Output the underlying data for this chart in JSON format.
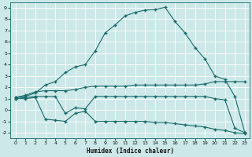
{
  "xlabel": "Humidex (Indice chaleur)",
  "bg_color": "#cce8e8",
  "grid_color": "#b0d4d4",
  "line_color": "#1a6b6b",
  "xlim": [
    -0.5,
    23.5
  ],
  "ylim": [
    -2.5,
    9.5
  ],
  "xticks": [
    0,
    1,
    2,
    3,
    4,
    5,
    6,
    7,
    8,
    9,
    10,
    11,
    12,
    13,
    14,
    15,
    16,
    17,
    18,
    19,
    20,
    21,
    22,
    23
  ],
  "yticks": [
    -2,
    -1,
    0,
    1,
    2,
    3,
    4,
    5,
    6,
    7,
    8,
    9
  ],
  "line_main_x": [
    0,
    1,
    2,
    3,
    4,
    5,
    6,
    7,
    8,
    9,
    10,
    11,
    12,
    13,
    14,
    15,
    16,
    17,
    18,
    19,
    20,
    21,
    22,
    23
  ],
  "line_main_y": [
    1.1,
    1.2,
    1.5,
    2.2,
    2.5,
    3.3,
    3.8,
    4.0,
    5.2,
    6.8,
    7.5,
    8.3,
    8.6,
    8.8,
    8.85,
    9.05,
    7.8,
    6.8,
    5.5,
    4.5,
    3.0,
    2.7,
    1.2,
    -2.0
  ],
  "line_upper_x": [
    0,
    1,
    2,
    3,
    4,
    5,
    6,
    7,
    8,
    9,
    10,
    11,
    12,
    13,
    14,
    15,
    16,
    17,
    18,
    19,
    20,
    21,
    22,
    23
  ],
  "line_upper_y": [
    1.1,
    1.3,
    1.6,
    1.7,
    1.7,
    1.7,
    1.8,
    2.0,
    2.1,
    2.1,
    2.1,
    2.1,
    2.2,
    2.2,
    2.2,
    2.2,
    2.2,
    2.2,
    2.2,
    2.3,
    2.5,
    2.5,
    2.5,
    2.5
  ],
  "line_mid_x": [
    0,
    1,
    2,
    3,
    4,
    5,
    6,
    7,
    8,
    9,
    10,
    11,
    12,
    13,
    14,
    15,
    16,
    17,
    18,
    19,
    20,
    21,
    22,
    23
  ],
  "line_mid_y": [
    1.0,
    1.1,
    1.2,
    1.2,
    1.2,
    -0.3,
    0.2,
    0.1,
    1.2,
    1.2,
    1.2,
    1.2,
    1.2,
    1.2,
    1.2,
    1.2,
    1.2,
    1.2,
    1.2,
    1.2,
    1.0,
    0.9,
    -1.6,
    -2.0
  ],
  "line_lower_x": [
    0,
    1,
    2,
    3,
    4,
    5,
    6,
    7,
    8,
    9,
    10,
    11,
    12,
    13,
    14,
    15,
    16,
    17,
    18,
    19,
    20,
    21,
    22,
    23
  ],
  "line_lower_y": [
    1.0,
    1.0,
    1.1,
    -0.8,
    -0.9,
    -1.0,
    -0.3,
    -0.1,
    -1.0,
    -1.0,
    -1.0,
    -1.0,
    -1.0,
    -1.0,
    -1.1,
    -1.1,
    -1.2,
    -1.3,
    -1.4,
    -1.5,
    -1.7,
    -1.8,
    -2.0,
    -2.1
  ]
}
